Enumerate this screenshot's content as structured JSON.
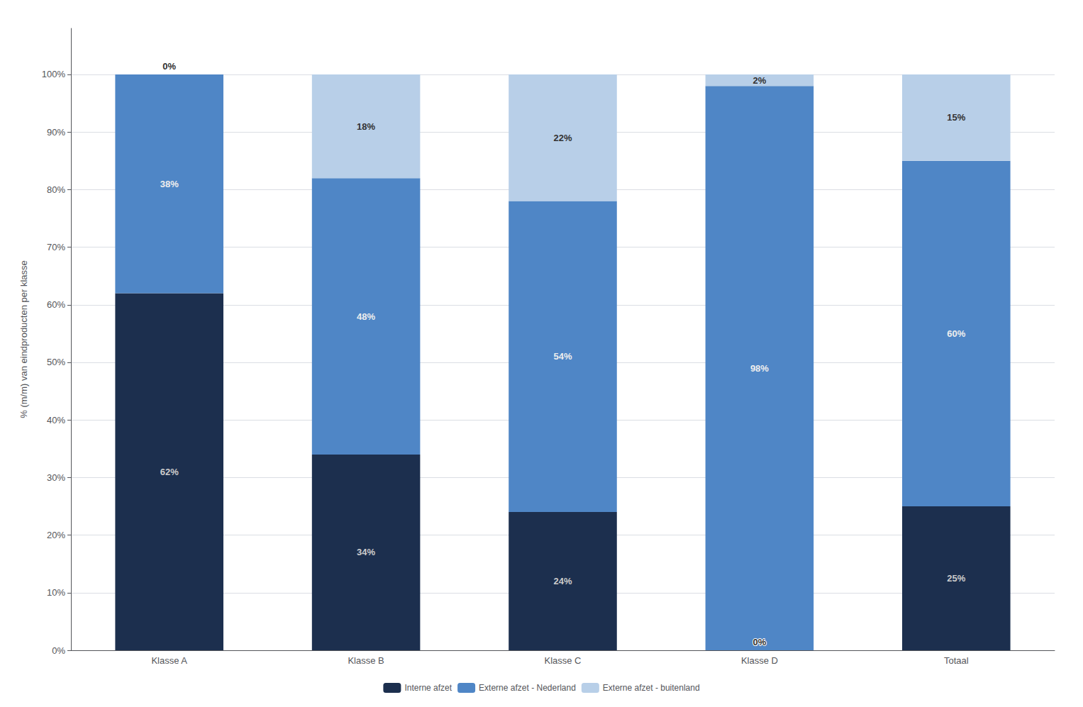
{
  "chart_data": {
    "type": "bar",
    "stacked": true,
    "data_labels": true,
    "grid": true,
    "legend": "bottom",
    "ylabel": "% (m/m) van eindproducten per klasse",
    "categories": [
      "Klasse A",
      "Klasse B",
      "Klasse C",
      "Klasse D",
      "Totaal"
    ],
    "series": [
      {
        "name": "Interne afzet",
        "color": "#1c2f4e",
        "values": [
          62,
          34,
          24,
          0,
          25
        ],
        "value_labels": [
          "62%",
          "34%",
          "24%",
          "0%",
          "25%"
        ]
      },
      {
        "name": "Externe afzet - Nederland",
        "color": "#4f86c6",
        "values": [
          38,
          48,
          54,
          98,
          60
        ],
        "value_labels": [
          "38%",
          "48%",
          "54%",
          "98%",
          "60%"
        ]
      },
      {
        "name": "Externe afzet - buitenland",
        "color": "#b8cfe8",
        "values": [
          0,
          18,
          22,
          2,
          15
        ],
        "value_labels": [
          "0%",
          "18%",
          "22%",
          "2%",
          "15%"
        ]
      }
    ],
    "ylim": [
      0,
      108
    ],
    "yticks": [
      {
        "value": 0,
        "label": "0%"
      },
      {
        "value": 10,
        "label": "10%"
      },
      {
        "value": 20,
        "label": "20%"
      },
      {
        "value": 30,
        "label": "30%"
      },
      {
        "value": 40,
        "label": "40%"
      },
      {
        "value": 50,
        "label": "50%"
      },
      {
        "value": 60,
        "label": "60%"
      },
      {
        "value": 70,
        "label": "70%"
      },
      {
        "value": 80,
        "label": "80%"
      },
      {
        "value": 90,
        "label": "90%"
      },
      {
        "value": 100,
        "label": "100%"
      }
    ]
  }
}
